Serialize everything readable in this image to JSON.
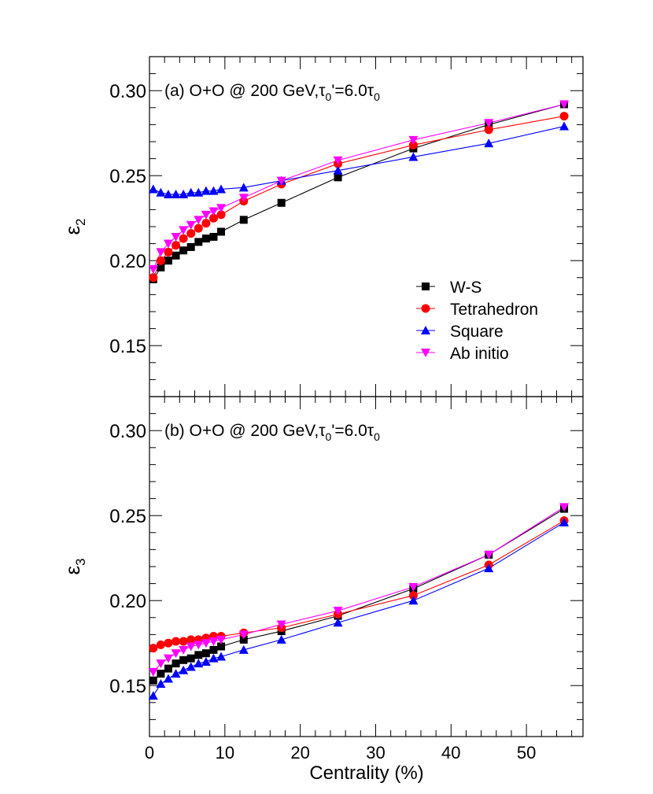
{
  "chart_data": [
    {
      "type": "line",
      "panel_label": "(a)",
      "title": "O+O @ 200 GeV,τ0'=6.0τ0",
      "title_parts": {
        "prefix": "O+O @ 200 GeV,τ",
        "sub1": "0",
        "middle": "'=6.0τ",
        "sub2": "0"
      },
      "xlabel": "Centrality (%)",
      "ylabel": "ε2",
      "ylabel_parts": {
        "main": "ε",
        "sub": "2"
      },
      "xlim": [
        0,
        57.5
      ],
      "ylim": [
        0.12,
        0.32
      ],
      "y_ticks": [
        0.15,
        0.2,
        0.25,
        0.3
      ],
      "y_tick_labels": [
        "0.15",
        "0.20",
        "0.25",
        "0.30"
      ],
      "legend_position": "right-middle",
      "series": [
        {
          "name": "W-S",
          "color": "#000000",
          "marker": "square",
          "x": [
            0.5,
            1.5,
            2.5,
            3.5,
            4.5,
            5.5,
            6.5,
            7.5,
            8.5,
            9.5,
            12.5,
            17.5,
            25,
            35,
            45,
            55
          ],
          "y": [
            0.189,
            0.196,
            0.2,
            0.203,
            0.206,
            0.208,
            0.211,
            0.213,
            0.214,
            0.217,
            0.224,
            0.234,
            0.249,
            0.266,
            0.28,
            0.292
          ]
        },
        {
          "name": "Tetrahedron",
          "color": "#ff0000",
          "marker": "circle",
          "x": [
            0.5,
            1.5,
            2.5,
            3.5,
            4.5,
            5.5,
            6.5,
            7.5,
            8.5,
            9.5,
            12.5,
            17.5,
            25,
            35,
            45,
            55
          ],
          "y": [
            0.19,
            0.2,
            0.205,
            0.209,
            0.213,
            0.216,
            0.219,
            0.222,
            0.225,
            0.227,
            0.235,
            0.245,
            0.257,
            0.268,
            0.277,
            0.285
          ]
        },
        {
          "name": "Square",
          "color": "#0000ff",
          "marker": "triangle-up",
          "x": [
            0.5,
            1.5,
            2.5,
            3.5,
            4.5,
            5.5,
            6.5,
            7.5,
            8.5,
            9.5,
            12.5,
            17.5,
            25,
            35,
            45,
            55
          ],
          "y": [
            0.242,
            0.24,
            0.239,
            0.239,
            0.239,
            0.24,
            0.24,
            0.241,
            0.241,
            0.242,
            0.243,
            0.247,
            0.253,
            0.261,
            0.269,
            0.279
          ]
        },
        {
          "name": "Ab initio",
          "color": "#ff00ff",
          "marker": "triangle-down",
          "x": [
            0.5,
            1.5,
            2.5,
            3.5,
            4.5,
            5.5,
            6.5,
            7.5,
            8.5,
            9.5,
            12.5,
            17.5,
            25,
            35,
            45,
            55
          ],
          "y": [
            0.195,
            0.205,
            0.21,
            0.214,
            0.218,
            0.221,
            0.224,
            0.227,
            0.229,
            0.231,
            0.237,
            0.247,
            0.259,
            0.271,
            0.281,
            0.292
          ]
        }
      ]
    },
    {
      "type": "line",
      "panel_label": "(b)",
      "title": "O+O @ 200 GeV,τ0'=6.0τ0",
      "title_parts": {
        "prefix": "O+O @ 200 GeV,τ",
        "sub1": "0",
        "middle": "'=6.0τ",
        "sub2": "0"
      },
      "xlabel": "Centrality (%)",
      "ylabel": "ε3",
      "ylabel_parts": {
        "main": "ε",
        "sub": "3"
      },
      "xlim": [
        0,
        57.5
      ],
      "ylim": [
        0.12,
        0.32
      ],
      "x_ticks": [
        0,
        10,
        20,
        30,
        40,
        50
      ],
      "x_tick_labels": [
        "0",
        "10",
        "20",
        "30",
        "40",
        "50"
      ],
      "y_ticks": [
        0.15,
        0.2,
        0.25,
        0.3
      ],
      "y_tick_labels": [
        "0.15",
        "0.20",
        "0.25",
        "0.30"
      ],
      "series": [
        {
          "name": "W-S",
          "color": "#000000",
          "marker": "square",
          "x": [
            0.5,
            1.5,
            2.5,
            3.5,
            4.5,
            5.5,
            6.5,
            7.5,
            8.5,
            9.5,
            12.5,
            17.5,
            25,
            35,
            45,
            55
          ],
          "y": [
            0.153,
            0.157,
            0.16,
            0.163,
            0.165,
            0.166,
            0.168,
            0.169,
            0.171,
            0.173,
            0.177,
            0.182,
            0.191,
            0.207,
            0.227,
            0.254
          ]
        },
        {
          "name": "Tetrahedron",
          "color": "#ff0000",
          "marker": "circle",
          "x": [
            0.5,
            1.5,
            2.5,
            3.5,
            4.5,
            5.5,
            6.5,
            7.5,
            8.5,
            9.5,
            12.5,
            17.5,
            25,
            35,
            45,
            55
          ],
          "y": [
            0.172,
            0.174,
            0.175,
            0.176,
            0.176,
            0.177,
            0.177,
            0.178,
            0.179,
            0.179,
            0.181,
            0.184,
            0.192,
            0.203,
            0.221,
            0.247
          ]
        },
        {
          "name": "Square",
          "color": "#0000ff",
          "marker": "triangle-up",
          "x": [
            0.5,
            1.5,
            2.5,
            3.5,
            4.5,
            5.5,
            6.5,
            7.5,
            8.5,
            9.5,
            12.5,
            17.5,
            25,
            35,
            45,
            55
          ],
          "y": [
            0.144,
            0.151,
            0.154,
            0.157,
            0.159,
            0.161,
            0.163,
            0.164,
            0.166,
            0.167,
            0.171,
            0.177,
            0.187,
            0.2,
            0.219,
            0.246
          ]
        },
        {
          "name": "Ab initio",
          "color": "#ff00ff",
          "marker": "triangle-down",
          "x": [
            0.5,
            1.5,
            2.5,
            3.5,
            4.5,
            5.5,
            6.5,
            7.5,
            8.5,
            9.5,
            12.5,
            17.5,
            25,
            35,
            45,
            55
          ],
          "y": [
            0.158,
            0.163,
            0.166,
            0.169,
            0.171,
            0.173,
            0.174,
            0.175,
            0.176,
            0.177,
            0.18,
            0.186,
            0.194,
            0.208,
            0.227,
            0.255
          ]
        }
      ]
    }
  ]
}
